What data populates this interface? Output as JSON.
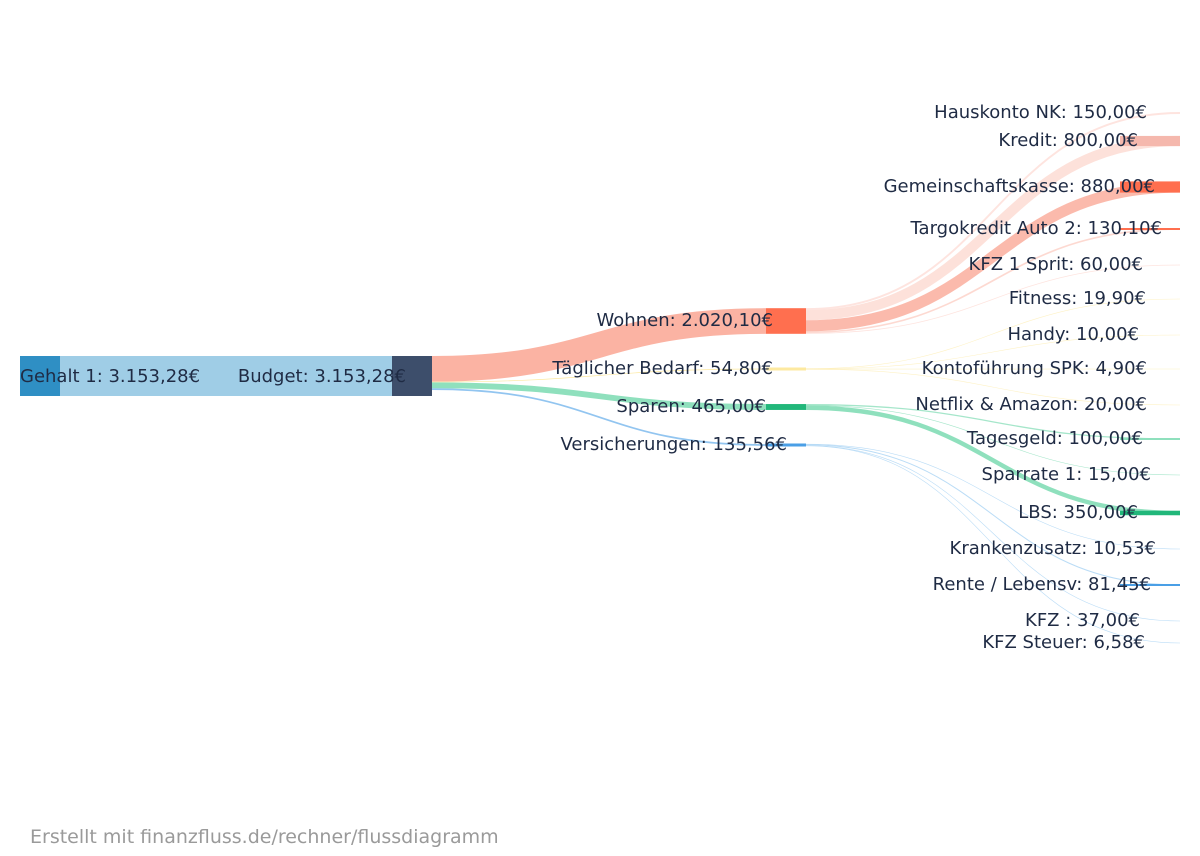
{
  "colors": {
    "income": "#2f8fc4",
    "income_flow": "#9fcde6",
    "budget": "#3d4e6b",
    "wohnen": "#ff6f4f",
    "wohnen_flow": "#fbb3a3",
    "bedarf": "#fde9a0",
    "sparen": "#21b77a",
    "sparen_flow": "#8fe0bd",
    "versicherung": "#4a9fe6",
    "versicherung_flow": "#b3d8f5",
    "text": "#1f2b44"
  },
  "nodes": {
    "income": [
      {
        "id": "gehalt",
        "label": "Gehalt 1: 3.153,28€"
      }
    ],
    "budget": {
      "id": "budget",
      "label": "Budget: 3.153,28€"
    },
    "categories": [
      {
        "id": "wohnen",
        "label": "Wohnen: 2.020,10€"
      },
      {
        "id": "bedarf",
        "label": "Täglicher Bedarf: 54,80€"
      },
      {
        "id": "sparen",
        "label": "Sparen: 465,00€"
      },
      {
        "id": "versicherungen",
        "label": "Versicherungen: 135,56€"
      }
    ],
    "items": [
      {
        "id": "hauskonto",
        "label": "Hauskonto NK: 150,00€"
      },
      {
        "id": "kredit",
        "label": "Kredit: 800,00€"
      },
      {
        "id": "gemeinschaft",
        "label": "Gemeinschaftskasse: 880,00€"
      },
      {
        "id": "targo",
        "label": "Targokredit Auto 2: 130,10€"
      },
      {
        "id": "kfzsprit",
        "label": "KFZ 1 Sprit: 60,00€"
      },
      {
        "id": "fitness",
        "label": "Fitness: 19,90€"
      },
      {
        "id": "handy",
        "label": "Handy: 10,00€"
      },
      {
        "id": "konto",
        "label": "Kontoführung SPK: 4,90€"
      },
      {
        "id": "netflix",
        "label": "Netflix & Amazon: 20,00€"
      },
      {
        "id": "tagesgeld",
        "label": "Tagesgeld: 100,00€"
      },
      {
        "id": "sparrate",
        "label": "Sparrate 1: 15,00€"
      },
      {
        "id": "lbs",
        "label": "LBS: 350,00€"
      },
      {
        "id": "kranken",
        "label": "Krankenzusatz: 10,53€"
      },
      {
        "id": "rente",
        "label": "Rente / Lebensv: 81,45€"
      },
      {
        "id": "kfz",
        "label": "KFZ : 37,00€"
      },
      {
        "id": "kfzsteuer",
        "label": "KFZ Steuer: 6,58€"
      }
    ]
  },
  "flows": [
    {
      "from": "gehalt",
      "to": "budget",
      "value": 3153.28
    },
    {
      "from": "budget",
      "to": "wohnen",
      "value": 2020.1
    },
    {
      "from": "budget",
      "to": "bedarf",
      "value": 54.8
    },
    {
      "from": "budget",
      "to": "sparen",
      "value": 465.0
    },
    {
      "from": "budget",
      "to": "versicherungen",
      "value": 135.56
    },
    {
      "from": "wohnen",
      "to": "hauskonto",
      "value": 150.0
    },
    {
      "from": "wohnen",
      "to": "kredit",
      "value": 800.0
    },
    {
      "from": "wohnen",
      "to": "gemeinschaft",
      "value": 880.0
    },
    {
      "from": "wohnen",
      "to": "targo",
      "value": 130.1
    },
    {
      "from": "wohnen",
      "to": "kfzsprit",
      "value": 60.0
    },
    {
      "from": "bedarf",
      "to": "fitness",
      "value": 19.9
    },
    {
      "from": "bedarf",
      "to": "handy",
      "value": 10.0
    },
    {
      "from": "bedarf",
      "to": "konto",
      "value": 4.9
    },
    {
      "from": "bedarf",
      "to": "netflix",
      "value": 20.0
    },
    {
      "from": "sparen",
      "to": "tagesgeld",
      "value": 100.0
    },
    {
      "from": "sparen",
      "to": "sparrate",
      "value": 15.0
    },
    {
      "from": "sparen",
      "to": "lbs",
      "value": 350.0
    },
    {
      "from": "versicherungen",
      "to": "kranken",
      "value": 10.53
    },
    {
      "from": "versicherungen",
      "to": "rente",
      "value": 81.45
    },
    {
      "from": "versicherungen",
      "to": "kfz",
      "value": 37.0
    },
    {
      "from": "versicherungen",
      "to": "kfzsteuer",
      "value": 6.58
    }
  ],
  "footer": {
    "text": "Erstellt mit finanzfluss.de/rechner/flussdiagramm"
  }
}
